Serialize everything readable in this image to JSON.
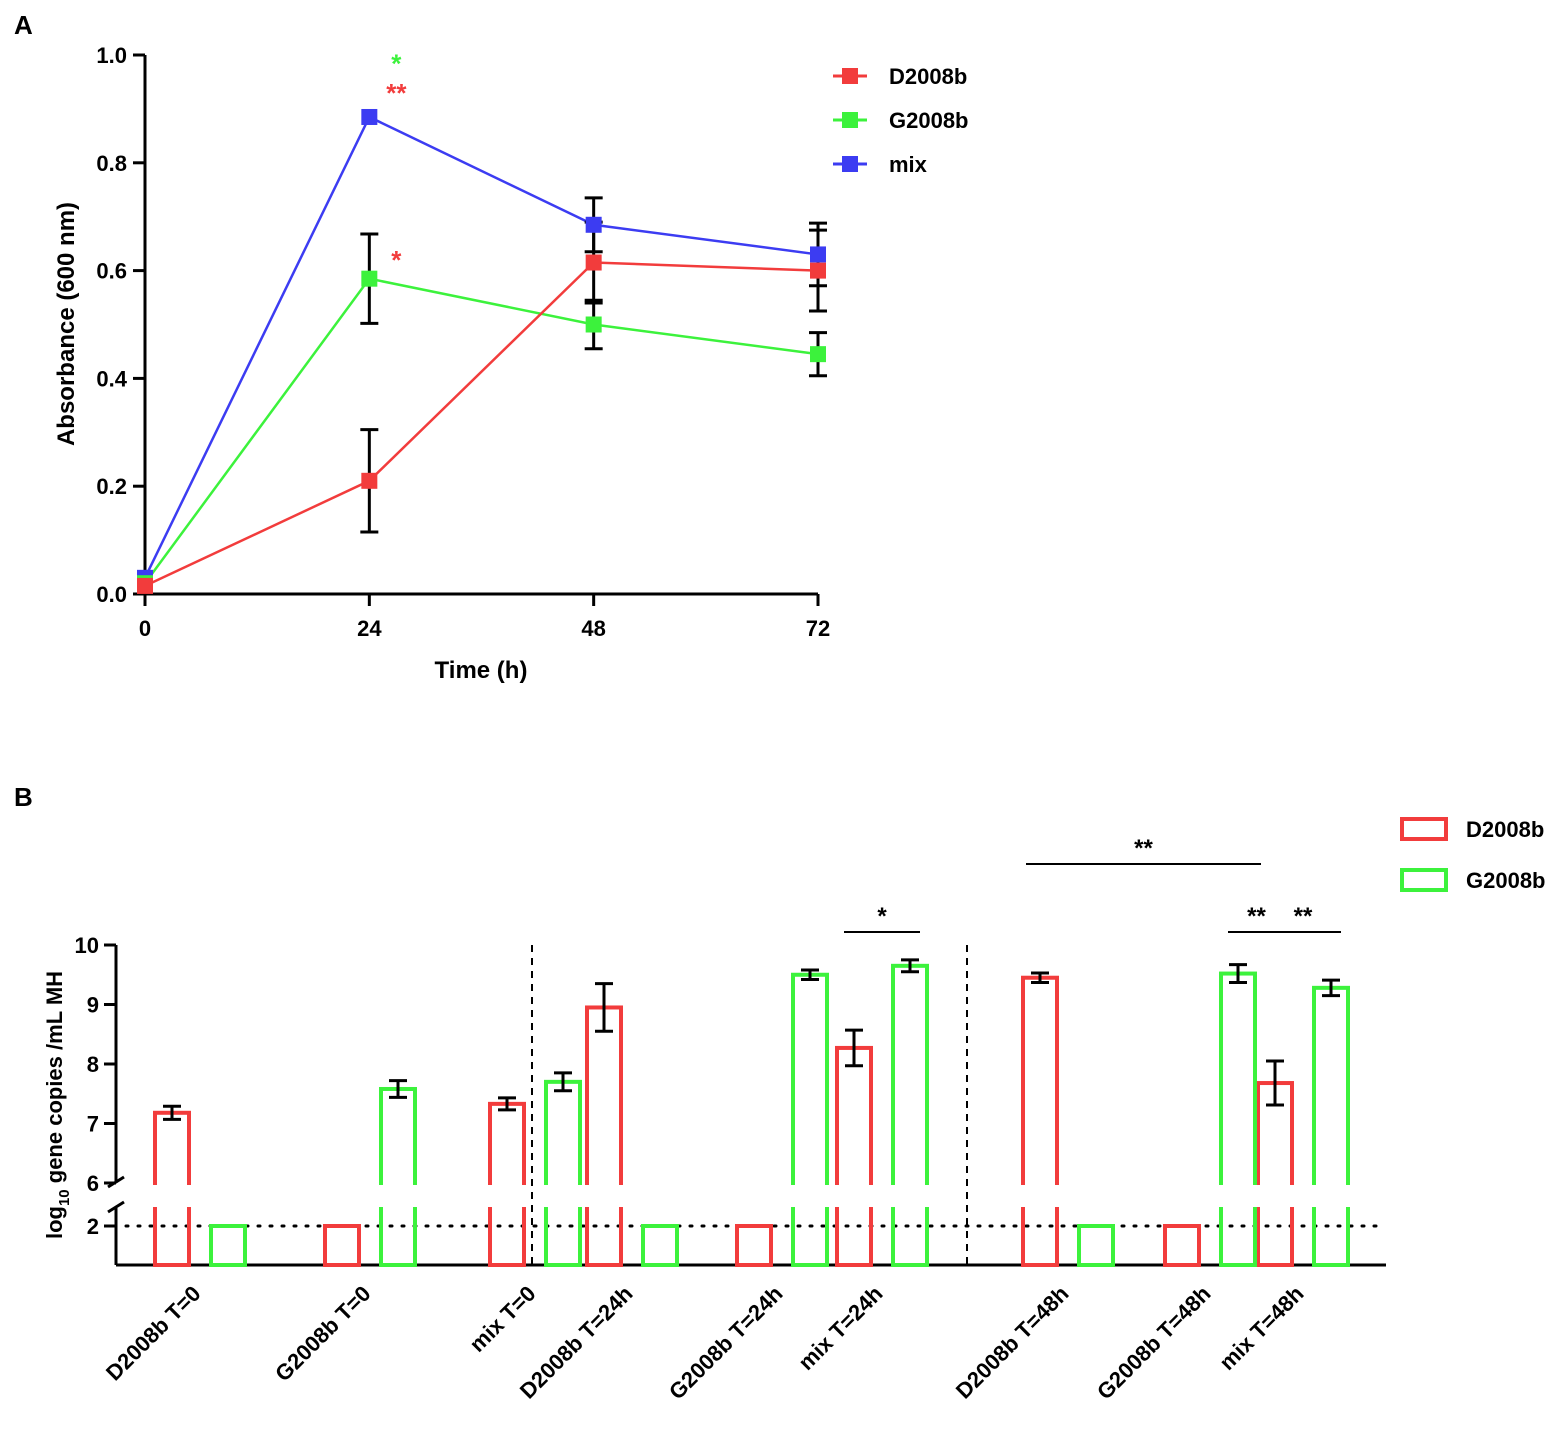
{
  "colors": {
    "D2008b": "#f23c3c",
    "G2008b": "#3cf23c",
    "mix": "#3c3cf2",
    "axis": "#000000"
  },
  "chart_data": [
    {
      "panel": "A",
      "type": "line",
      "xlabel": "Time (h)",
      "ylabel": "Absorbance (600 nm)",
      "x": [
        0,
        24,
        48,
        72
      ],
      "xticks": [
        "0",
        "24",
        "48",
        "72"
      ],
      "yticks": [
        "0.0",
        "0.2",
        "0.4",
        "0.6",
        "0.8",
        "1.0"
      ],
      "xlim": [
        0,
        72
      ],
      "ylim": [
        0,
        1.0
      ],
      "legend_position": "top-right",
      "series": [
        {
          "name": "D2008b",
          "color": "#f23c3c",
          "values": [
            0.015,
            0.21,
            0.615,
            0.6
          ],
          "errors": [
            0,
            0.095,
            0.075,
            0.075
          ]
        },
        {
          "name": "G2008b",
          "color": "#3cf23c",
          "values": [
            0.02,
            0.585,
            0.5,
            0.445
          ],
          "errors": [
            0,
            0.083,
            0.045,
            0.04
          ]
        },
        {
          "name": "mix",
          "color": "#3c3cf2",
          "values": [
            0.03,
            0.885,
            0.685,
            0.63
          ],
          "errors": [
            0,
            0,
            0.05,
            0.058
          ]
        }
      ],
      "annotations": [
        {
          "text": "*",
          "color": "#3cf23c",
          "x": 24,
          "y": 0.99
        },
        {
          "text": "**",
          "color": "#f23c3c",
          "x": 24,
          "y": 0.935
        },
        {
          "text": "*",
          "color": "#f23c3c",
          "x": 24,
          "y": 0.625
        }
      ]
    },
    {
      "panel": "B",
      "type": "bar",
      "ylabel_main": "log",
      "ylabel_sub": "10",
      "ylabel_rest": " gene copies /mL MH",
      "yticks_upper": [
        "6",
        "7",
        "8",
        "9",
        "10"
      ],
      "yticks_lower": [
        "2"
      ],
      "ylim_upper": [
        6,
        10
      ],
      "detection_limit": 2,
      "legend_position": "top-right",
      "legend": [
        {
          "name": "D2008b",
          "color": "#f23c3c"
        },
        {
          "name": "G2008b",
          "color": "#3cf23c"
        }
      ],
      "categories": [
        "D2008b T=0",
        "G2008b T=0",
        "mix T=0",
        "D2008b T=24h",
        "G2008b T=24h",
        "mix T=24h",
        "D2008b T=48h",
        "G2008b T=48h",
        "mix T=48h"
      ],
      "series": [
        {
          "name": "D2008b",
          "color": "#f23c3c",
          "values": [
            7.18,
            2,
            7.33,
            8.95,
            2,
            8.27,
            9.45,
            2,
            7.68
          ],
          "errors": [
            0.11,
            0,
            0.1,
            0.4,
            0,
            0.3,
            0.08,
            0,
            0.37
          ]
        },
        {
          "name": "G2008b",
          "color": "#3cf23c",
          "values": [
            2,
            7.58,
            7.7,
            2,
            9.5,
            9.65,
            2,
            9.52,
            9.28
          ],
          "errors": [
            0,
            0.14,
            0.15,
            0,
            0.08,
            0.1,
            0,
            0.15,
            0.13
          ]
        }
      ],
      "separators_after_group": [
        2,
        5
      ],
      "significance": [
        {
          "text": "*",
          "level": 1,
          "from": {
            "group": 5,
            "series": 0
          },
          "to": {
            "group": 5,
            "series": 1
          }
        },
        {
          "text": "**",
          "level": 1,
          "from": {
            "group": 7,
            "series": 1
          },
          "to": {
            "group": 8,
            "series": 0
          }
        },
        {
          "text": "**",
          "level": 1,
          "from": {
            "group": 8,
            "series": 0
          },
          "to": {
            "group": 8,
            "series": 1
          }
        },
        {
          "text": "**",
          "level": 2,
          "from": {
            "group": 6,
            "series": 0
          },
          "to": {
            "group": 8,
            "series": 0
          }
        }
      ]
    }
  ],
  "panel_labels": [
    "A",
    "B"
  ]
}
